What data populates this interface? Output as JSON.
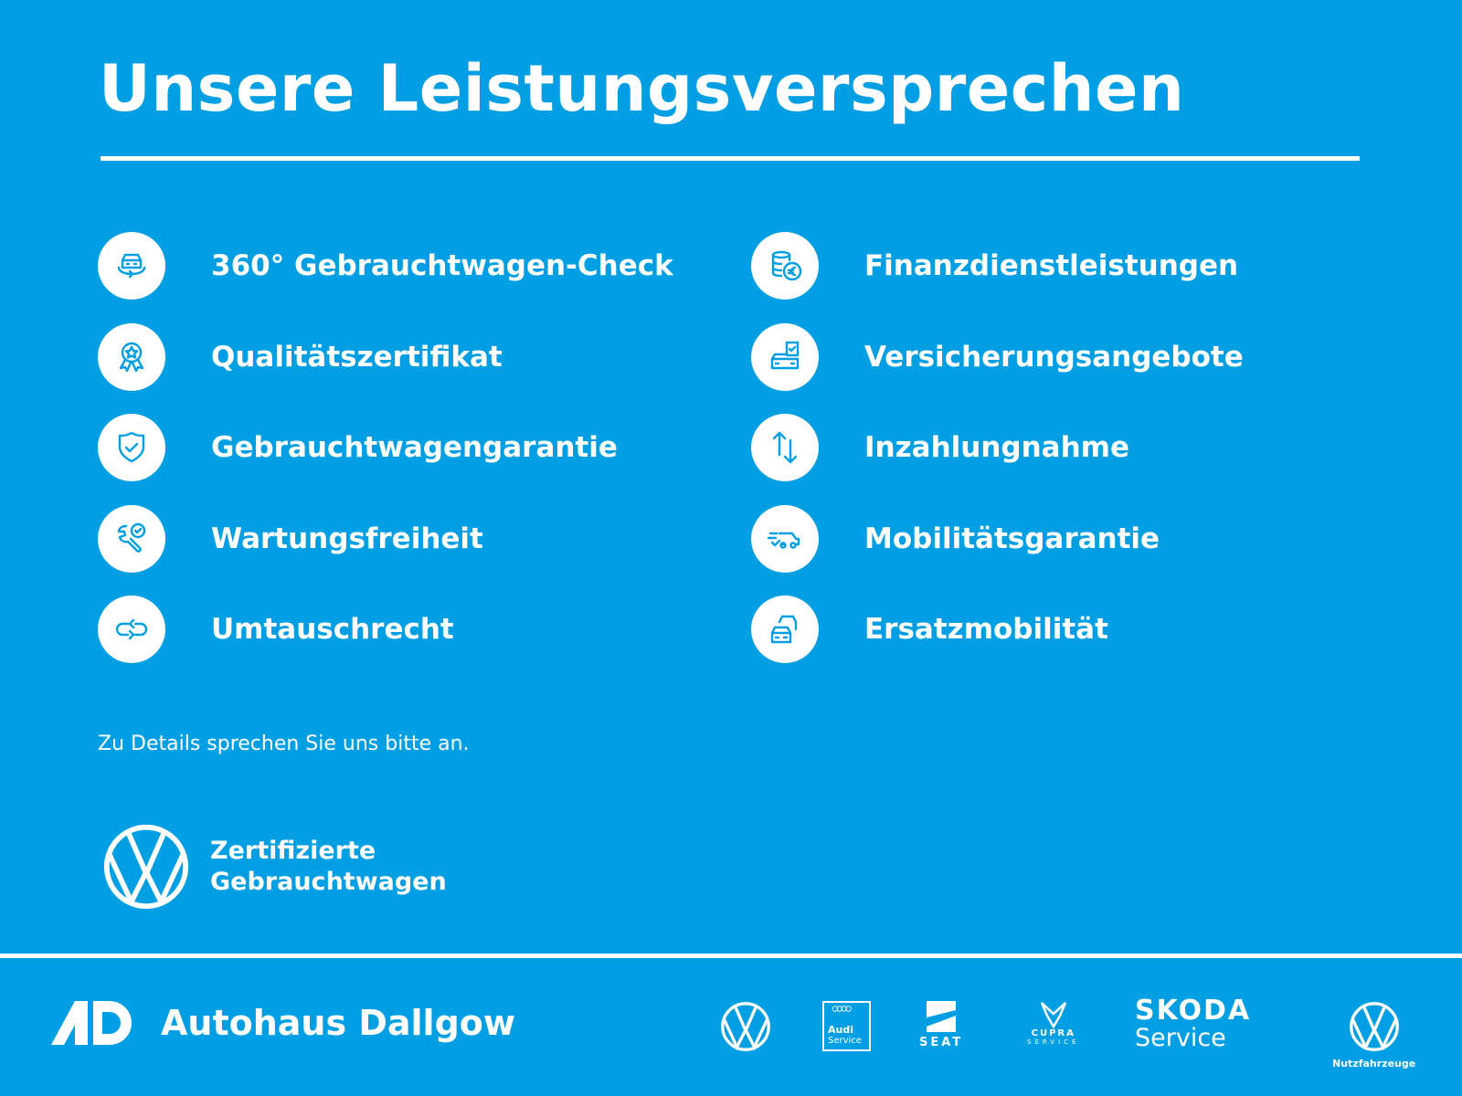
{
  "title": "Unsere Leistungsversprechen",
  "left_items": [
    {
      "label": "360° Gebrauchtwagen-Check",
      "icon": "car-360-icon"
    },
    {
      "label": "Qualitätszertifikat",
      "icon": "award-ribbon-icon"
    },
    {
      "label": "Gebrauchtwagengarantie",
      "icon": "shield-check-icon"
    },
    {
      "label": "Wartungsfreiheit",
      "icon": "wrench-check-icon"
    },
    {
      "label": "Umtauschrecht",
      "icon": "exchange-arrows-icon"
    }
  ],
  "right_items": [
    {
      "label": "Finanzdienstleistungen",
      "icon": "coins-euro-icon"
    },
    {
      "label": "Versicherungsangebote",
      "icon": "car-document-check-icon"
    },
    {
      "label": "Inzahlungnahme",
      "icon": "up-down-arrows-icon"
    },
    {
      "label": "Mobilitätsgarantie",
      "icon": "fast-car-icon"
    },
    {
      "label": "Ersatzmobilität",
      "icon": "two-cars-icon"
    }
  ],
  "note": "Zu Details sprechen Sie uns bitte an.",
  "cert": {
    "line1": "Zertifizierte",
    "line2": "Gebrauchtwagen"
  },
  "footer": {
    "dealer": "Autohaus Dallgow",
    "brands": {
      "audi": "Audi",
      "audi2": "Service",
      "seat": "SEAT",
      "cupra": "CUPRA",
      "cupra2": "SERVICE",
      "skoda": "SKODA",
      "skoda2": "Service",
      "vwn": "Nutzfahrzeuge"
    }
  },
  "colors": {
    "background": "#009fe3",
    "foreground": "#ffffff"
  }
}
